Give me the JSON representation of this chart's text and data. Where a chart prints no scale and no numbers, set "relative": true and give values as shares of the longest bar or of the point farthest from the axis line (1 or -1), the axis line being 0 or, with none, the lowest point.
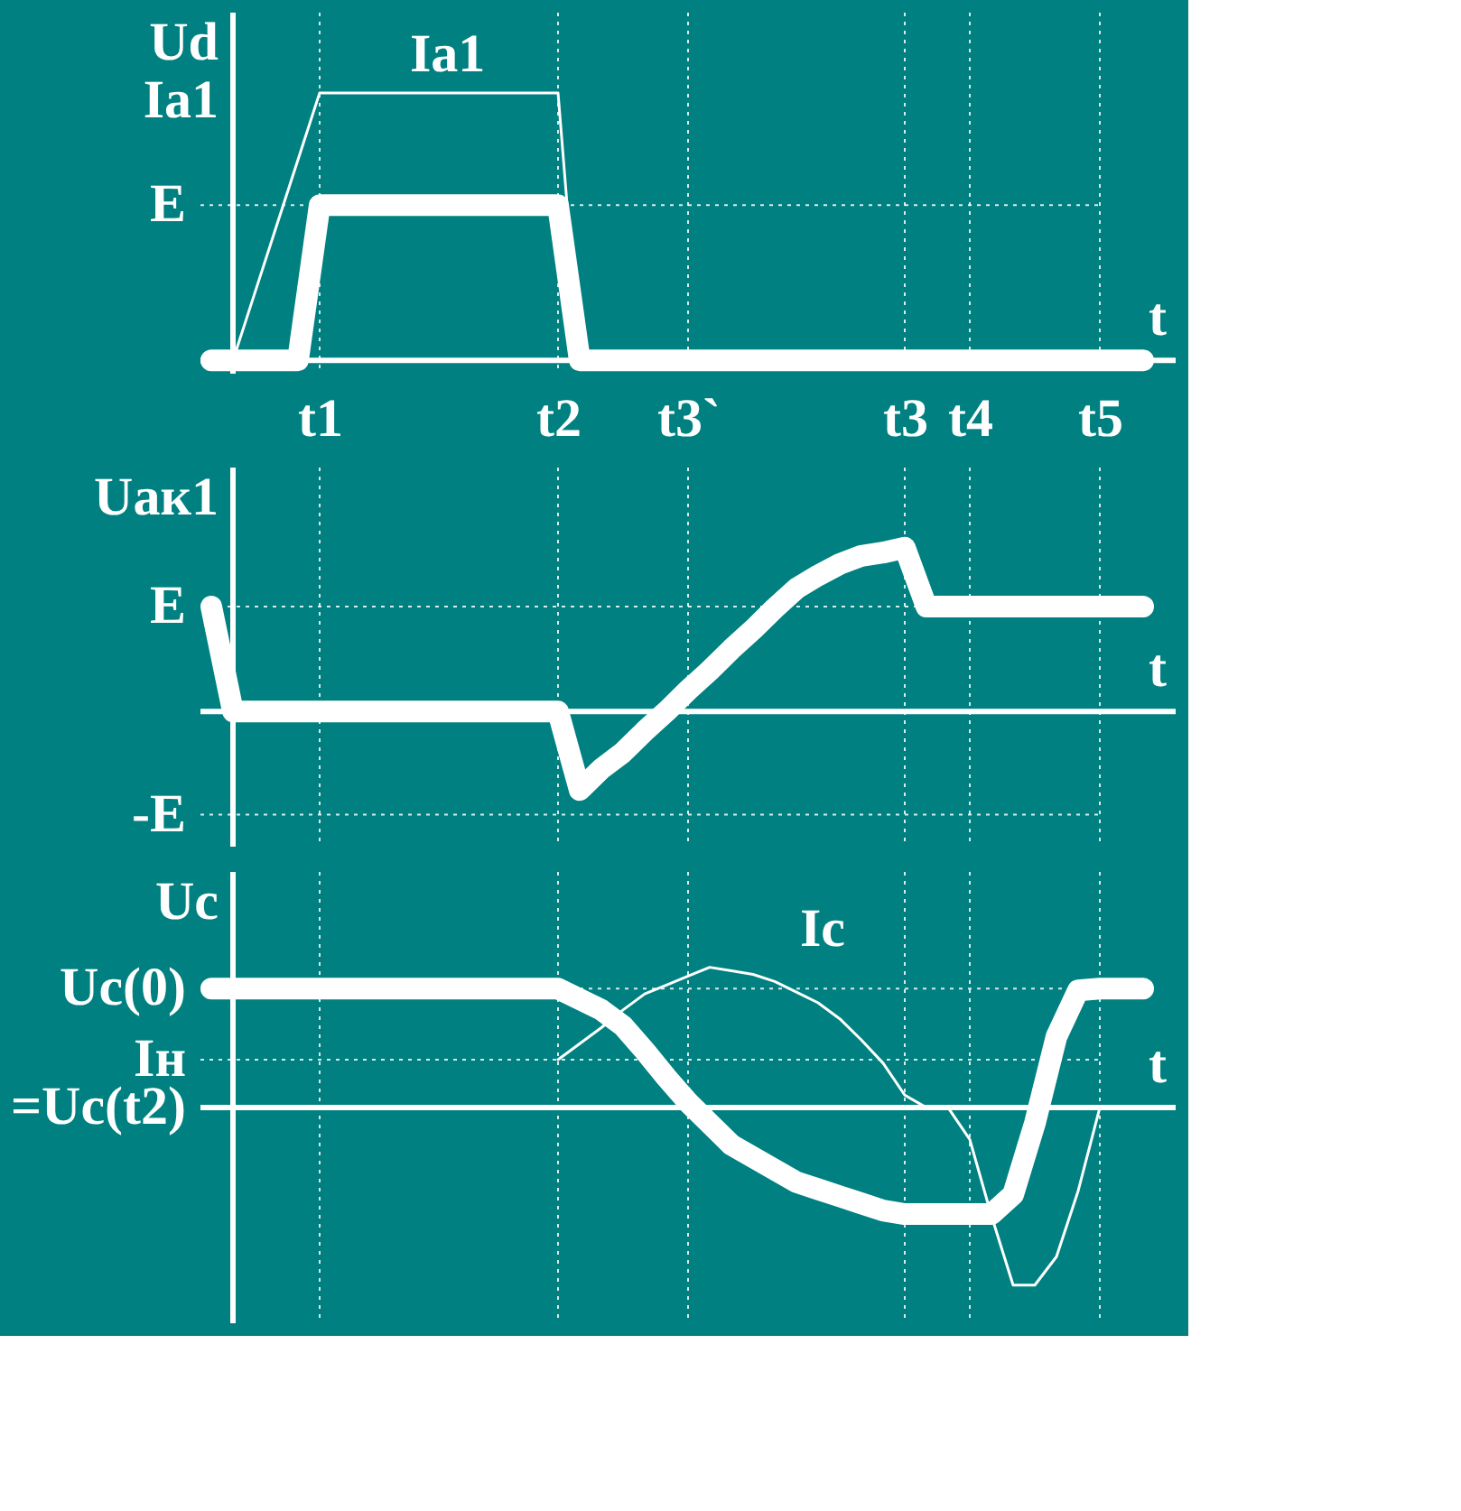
{
  "chart_data": [
    {
      "type": "line",
      "relative": true,
      "ylabel": "Ud\nIa1",
      "xlabel": "t",
      "categories": [
        null,
        null,
        null,
        null,
        null,
        "t1",
        null,
        null,
        null,
        null,
        null,
        null,
        null,
        null,
        null,
        null,
        "t2",
        null,
        null,
        null,
        null,
        null,
        "t3`",
        null,
        null,
        null,
        null,
        null,
        null,
        null,
        null,
        null,
        "t3",
        null,
        null,
        "t4",
        null,
        null,
        null,
        null,
        null,
        "t5",
        null,
        null,
        null
      ],
      "series": [
        {
          "color": "#ffffff",
          "values": [
            0,
            0,
            0,
            0,
            0,
            0.58,
            0.58,
            0.58,
            0.58,
            0.58,
            0.58,
            0.58,
            0.58,
            0.58,
            0.58,
            0.58,
            0.58,
            0,
            0,
            0,
            0,
            0,
            0,
            0,
            0,
            0,
            0,
            0,
            0,
            0,
            0,
            0,
            0,
            0,
            0,
            0,
            0,
            0,
            0,
            0,
            0,
            0,
            0,
            0,
            null
          ]
        },
        {
          "name": "Ia1",
          "color": "#ffffff",
          "values": [
            null,
            0,
            0.25,
            0.5,
            0.75,
            1,
            1,
            1,
            1,
            1,
            1,
            1,
            1,
            1,
            1,
            1,
            1,
            0,
            null,
            null,
            null,
            null,
            null,
            null,
            null,
            null,
            null,
            null,
            null,
            null,
            null,
            null,
            null,
            null,
            null,
            null,
            null,
            null,
            null,
            null,
            null,
            null,
            null,
            null,
            null
          ]
        }
      ],
      "ref_lines": [
        {
          "axis": "y",
          "value": 0.58,
          "label": "E",
          "line_style": "dotted"
        },
        {
          "axis": "x",
          "value": "t1",
          "line_style": "dotted"
        },
        {
          "axis": "x",
          "value": "t2",
          "line_style": "dotted"
        },
        {
          "axis": "x",
          "value": "t3`",
          "line_style": "dotted"
        },
        {
          "axis": "x",
          "value": "t3",
          "line_style": "dotted"
        },
        {
          "axis": "x",
          "value": "t4",
          "line_style": "dotted"
        },
        {
          "axis": "x",
          "value": "t5",
          "line_style": "dotted"
        }
      ]
    },
    {
      "type": "line",
      "relative": true,
      "ylabel": "Uак1",
      "xlabel": "t",
      "tick_labels": false,
      "categories": [
        null,
        null,
        null,
        null,
        null,
        "t1",
        null,
        null,
        null,
        null,
        null,
        null,
        null,
        null,
        null,
        null,
        "t2",
        null,
        null,
        null,
        null,
        null,
        "t3`",
        null,
        null,
        null,
        null,
        null,
        null,
        null,
        null,
        null,
        "t3",
        null,
        null,
        "t4",
        null,
        null,
        null,
        null,
        null,
        "t5",
        null,
        null,
        null
      ],
      "series": [
        {
          "color": "#ffffff",
          "values": [
            0.64,
            0,
            0,
            0,
            0,
            0,
            0,
            0,
            0,
            0,
            0,
            0,
            0,
            0,
            0,
            0,
            0,
            -0.48,
            -0.35,
            -0.25,
            -0.12,
            0.0,
            0.13,
            0.25,
            0.38,
            0.5,
            0.63,
            0.75,
            0.83,
            0.9,
            0.95,
            0.97,
            1.0,
            0.64,
            0.64,
            0.64,
            0.64,
            0.64,
            0.64,
            0.64,
            0.64,
            0.64,
            0.64,
            0.64,
            null
          ]
        }
      ],
      "ref_lines": [
        {
          "axis": "y",
          "value": 0.64,
          "label": "E",
          "line_style": "dotted"
        },
        {
          "axis": "y",
          "value": -0.63,
          "label": "-E",
          "line_style": "dotted"
        },
        {
          "axis": "x",
          "value": "t1",
          "line_style": "dotted"
        },
        {
          "axis": "x",
          "value": "t2",
          "line_style": "dotted"
        },
        {
          "axis": "x",
          "value": "t3`",
          "line_style": "dotted"
        },
        {
          "axis": "x",
          "value": "t3",
          "line_style": "dotted"
        },
        {
          "axis": "x",
          "value": "t4",
          "line_style": "dotted"
        },
        {
          "axis": "x",
          "value": "t5",
          "line_style": "dotted"
        }
      ]
    },
    {
      "type": "line",
      "relative": true,
      "ylabel": "Uc",
      "xlabel": "t",
      "tick_labels": false,
      "categories": [
        null,
        null,
        null,
        null,
        null,
        "t1",
        null,
        null,
        null,
        null,
        null,
        null,
        null,
        null,
        null,
        null,
        "t2",
        null,
        null,
        null,
        null,
        null,
        "t3`",
        null,
        null,
        null,
        null,
        null,
        null,
        null,
        null,
        null,
        "t3",
        null,
        null,
        "t4",
        null,
        null,
        null,
        null,
        null,
        "t5",
        null,
        null,
        null
      ],
      "series": [
        {
          "color": "#ffffff",
          "values": [
            0.67,
            0.67,
            0.67,
            0.67,
            0.67,
            0.67,
            0.67,
            0.67,
            0.67,
            0.67,
            0.67,
            0.67,
            0.67,
            0.67,
            0.67,
            0.67,
            0.67,
            0.61,
            0.55,
            0.46,
            0.32,
            0.17,
            0.03,
            -0.09,
            -0.21,
            -0.28,
            -0.35,
            -0.42,
            -0.46,
            -0.5,
            -0.54,
            -0.58,
            -0.6,
            -0.6,
            -0.6,
            -0.6,
            -0.6,
            -0.49,
            -0.09,
            0.4,
            0.66,
            0.67,
            0.67,
            0.67,
            null
          ]
        },
        {
          "name": "Ic",
          "color": "#ffffff",
          "values": [
            null,
            null,
            null,
            null,
            null,
            null,
            null,
            null,
            null,
            null,
            null,
            null,
            null,
            null,
            null,
            null,
            0.27,
            0.36,
            0.45,
            0.55,
            0.64,
            0.69,
            0.74,
            0.79,
            0.77,
            0.75,
            0.71,
            0.65,
            0.59,
            0.5,
            0.38,
            0.25,
            0.07,
            0,
            0,
            -0.18,
            -0.61,
            -1,
            -1,
            -0.84,
            -0.47,
            0,
            null,
            null,
            null
          ]
        }
      ],
      "ref_lines": [
        {
          "axis": "y",
          "value": 0.67,
          "label": "Uc(0)",
          "line_style": "dotted"
        },
        {
          "axis": "y",
          "value": 0.27,
          "label": "Iн",
          "line_style": "dotted"
        },
        {
          "axis": "x",
          "value": "t1",
          "line_style": "dotted"
        },
        {
          "axis": "x",
          "value": "t2",
          "line_style": "dotted"
        },
        {
          "axis": "x",
          "value": "t3`",
          "line_style": "dotted"
        },
        {
          "axis": "x",
          "value": "t3",
          "line_style": "dotted"
        },
        {
          "axis": "x",
          "value": "t4",
          "line_style": "dotted"
        },
        {
          "axis": "x",
          "value": "t5",
          "line_style": "dotted"
        }
      ],
      "annotations": [
        "=Uc(t2)"
      ]
    }
  ]
}
